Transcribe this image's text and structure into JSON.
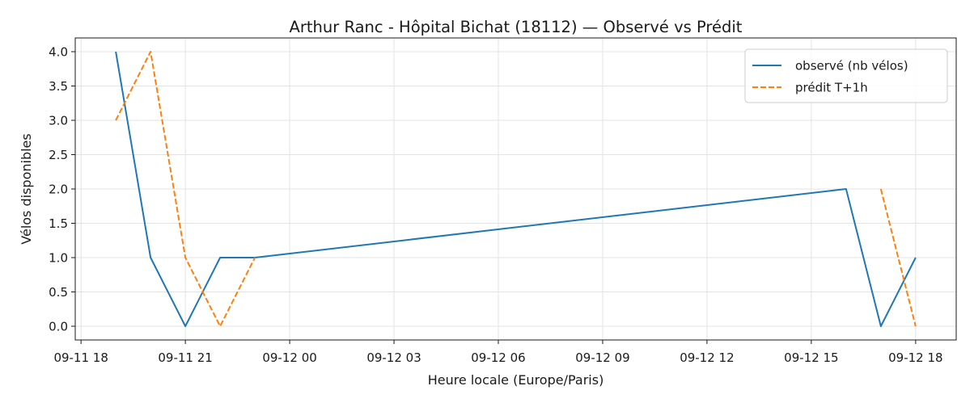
{
  "chart_data": {
    "type": "line",
    "title": "Arthur Ranc - Hôpital Bichat (18112) — Observé vs Prédit",
    "xlabel": "Heure locale (Europe/Paris)",
    "ylabel": "Vélos disponibles",
    "xlim": [
      "2024-09-11 17:50",
      "2024-09-12 19:10"
    ],
    "ylim": [
      -0.2,
      4.2
    ],
    "x_ticks": [
      {
        "value": "2024-09-11 18:00",
        "label": "09-11 18"
      },
      {
        "value": "2024-09-11 21:00",
        "label": "09-11 21"
      },
      {
        "value": "2024-09-12 00:00",
        "label": "09-12 00"
      },
      {
        "value": "2024-09-12 03:00",
        "label": "09-12 03"
      },
      {
        "value": "2024-09-12 06:00",
        "label": "09-12 06"
      },
      {
        "value": "2024-09-12 09:00",
        "label": "09-12 09"
      },
      {
        "value": "2024-09-12 12:00",
        "label": "09-12 12"
      },
      {
        "value": "2024-09-12 15:00",
        "label": "09-12 15"
      },
      {
        "value": "2024-09-12 18:00",
        "label": "09-12 18"
      }
    ],
    "y_ticks": [
      {
        "value": 0.0,
        "label": "0.0"
      },
      {
        "value": 0.5,
        "label": "0.5"
      },
      {
        "value": 1.0,
        "label": "1.0"
      },
      {
        "value": 1.5,
        "label": "1.5"
      },
      {
        "value": 2.0,
        "label": "2.0"
      },
      {
        "value": 2.5,
        "label": "2.5"
      },
      {
        "value": 3.0,
        "label": "3.0"
      },
      {
        "value": 3.5,
        "label": "3.5"
      },
      {
        "value": 4.0,
        "label": "4.0"
      }
    ],
    "grid": true,
    "legend_position": "top-right",
    "series": [
      {
        "name": "observé (nb vélos)",
        "color": "#1f77b4",
        "style": "solid",
        "segments": [
          [
            {
              "x": "2024-09-11 19:00",
              "y": 4
            },
            {
              "x": "2024-09-11 20:00",
              "y": 1
            },
            {
              "x": "2024-09-11 21:00",
              "y": 0
            },
            {
              "x": "2024-09-11 22:00",
              "y": 1
            },
            {
              "x": "2024-09-11 23:00",
              "y": 1
            },
            {
              "x": "2024-09-12 16:00",
              "y": 2
            },
            {
              "x": "2024-09-12 17:00",
              "y": 0
            },
            {
              "x": "2024-09-12 18:00",
              "y": 1
            }
          ]
        ]
      },
      {
        "name": "prédit T+1h",
        "color": "#ff7f0e",
        "style": "dashed",
        "segments": [
          [
            {
              "x": "2024-09-11 19:00",
              "y": 3
            },
            {
              "x": "2024-09-11 20:00",
              "y": 4
            },
            {
              "x": "2024-09-11 21:00",
              "y": 1
            },
            {
              "x": "2024-09-11 22:00",
              "y": 0
            },
            {
              "x": "2024-09-11 23:00",
              "y": 1
            }
          ],
          [
            {
              "x": "2024-09-12 17:00",
              "y": 2
            },
            {
              "x": "2024-09-12 18:00",
              "y": 0
            }
          ]
        ]
      }
    ]
  }
}
